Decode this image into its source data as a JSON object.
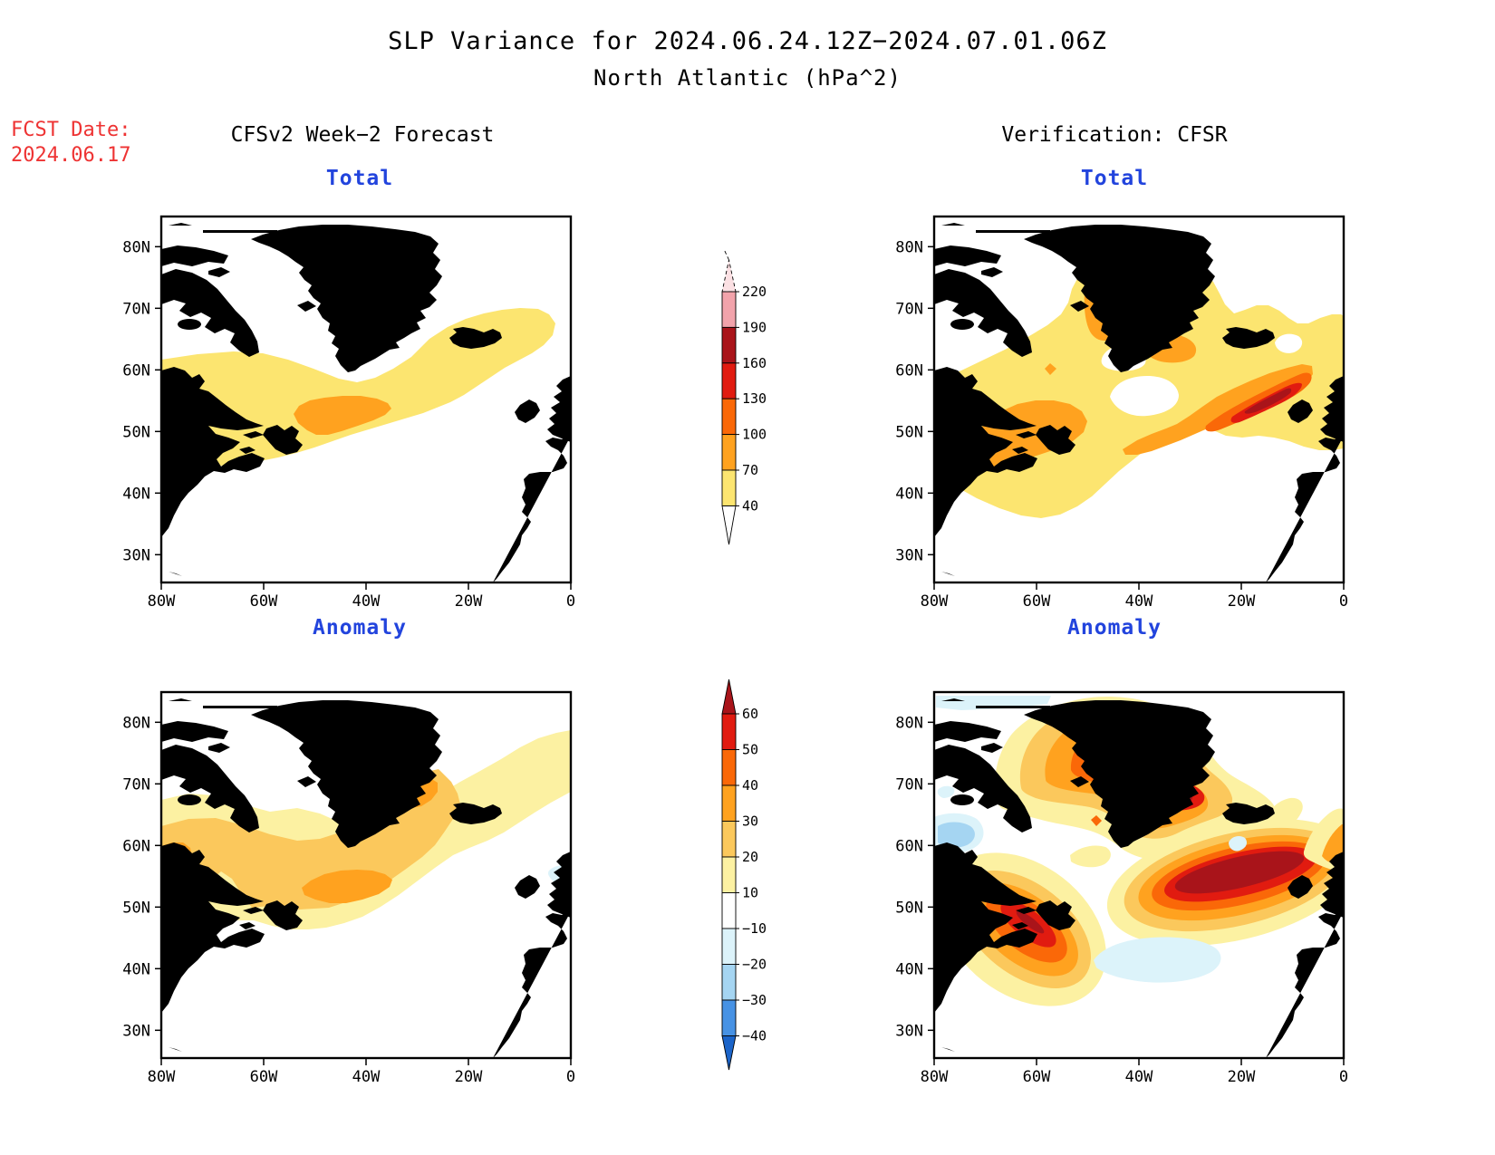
{
  "palette": {
    "t40": "#FCE570",
    "t70": "#FFA21F",
    "t100": "#FA6808",
    "t130": "#E11B10",
    "t160": "#A9141A",
    "t190": "#F2A3AB",
    "t220": "#FBE0E3",
    "a10": "#FCF1A2",
    "a20": "#FBC85C",
    "a30": "#FFA21F",
    "a40": "#FA6808",
    "a50": "#E11B10",
    "a60": "#A9141A",
    "m10": "#DCF3FA",
    "m20": "#A5D5F2",
    "m30": "#4792E4",
    "m40": "#1B64C9",
    "white": "#FFFFFF",
    "coast": "#000000",
    "fcst_red": "#EE3333",
    "panel_blue": "#2244DD"
  },
  "header": {
    "title_line1": "SLP Variance for 2024.06.24.12Z−2024.07.01.06Z",
    "title_line2": "North Atlantic (hPa^2)",
    "fcst_label": "FCST Date:",
    "fcst_date": "2024.06.17",
    "left_column": "CFSv2 Week−2 Forecast",
    "right_column": "Verification: CFSR"
  },
  "panels": [
    {
      "id": "forecast-total",
      "label": "Total"
    },
    {
      "id": "verification-total",
      "label": "Total"
    },
    {
      "id": "forecast-anomaly",
      "label": "Anomaly"
    },
    {
      "id": "verification-anomaly",
      "label": "Anomaly"
    }
  ],
  "axes": {
    "lat_ticks": [
      {
        "label": "80N",
        "value": 80
      },
      {
        "label": "70N",
        "value": 70
      },
      {
        "label": "60N",
        "value": 60
      },
      {
        "label": "50N",
        "value": 50
      },
      {
        "label": "40N",
        "value": 40
      },
      {
        "label": "30N",
        "value": 30
      }
    ],
    "lon_ticks": [
      {
        "label": "80W",
        "value": -80
      },
      {
        "label": "60W",
        "value": -60
      },
      {
        "label": "40W",
        "value": -40
      },
      {
        "label": "20W",
        "value": -20
      },
      {
        "label": "0",
        "value": 0
      }
    ]
  },
  "colorbars": {
    "total": {
      "tick_labels": [
        "220",
        "190",
        "160",
        "130",
        "100",
        "70",
        "40"
      ],
      "segment_colors": [
        "#F2A3AB",
        "#A9141A",
        "#E11B10",
        "#FA6808",
        "#FFA21F",
        "#FCE570"
      ],
      "above_color": "#FBE0E3",
      "below_color": "#FFFFFF"
    },
    "anomaly": {
      "tick_labels": [
        "60",
        "50",
        "40",
        "30",
        "20",
        "10",
        "−10",
        "−20",
        "−30",
        "−40"
      ],
      "segment_colors": [
        "#E11B10",
        "#FA6808",
        "#FFA21F",
        "#FBC85C",
        "#FCF1A2",
        "#FFFFFF",
        "#DCF3FA",
        "#A5D5F2",
        "#4792E4"
      ],
      "above_color": "#A9141A",
      "below_color": "#1B64C9"
    }
  },
  "chart_data": {
    "type": "heatmap",
    "subtype": "filled-contour-maps",
    "title": "SLP Variance for 2024.06.24.12Z−2024.07.01.06Z",
    "subtitle": "North Atlantic (hPa^2)",
    "units": "hPa^2",
    "forecast_initialization": "2024.06.17",
    "map_domain": {
      "lon_range": [
        "80W",
        "0"
      ],
      "lat_range": [
        "~25N",
        "~85N"
      ]
    },
    "contour_levels_total": [
      40,
      70,
      100,
      130,
      160,
      190,
      220
    ],
    "contour_levels_anomaly": [
      -40,
      -30,
      -20,
      -10,
      10,
      20,
      30,
      40,
      50,
      60
    ],
    "panels": [
      {
        "column": "CFSv2 Week−2 Forecast",
        "field": "Total",
        "features": [
          {
            "range": "40–70",
            "where": "zonal band across N Atlantic 45N–62N, 80W–5W, rising NE over Iceland to ~68N"
          },
          {
            "range": "70–100",
            "where": "maximum SE of Newfoundland ~50N–55N, 55W–35W"
          }
        ]
      },
      {
        "column": "Verification: CFSR",
        "field": "Total",
        "features": [
          {
            "range": "40–70",
            "where": "broad area over most of the basin and Greenland"
          },
          {
            "range": "70–100",
            "where": "interior/N Greenland ~70N–78N and E Greenland ~63N–67N"
          },
          {
            "range": "70–100",
            "where": "Newfoundland / Gulf of St Lawrence ~44N–52N"
          },
          {
            "range": "100–190",
            "where": "storm-track maximum S of Iceland ~53N–58N, 25W–5W, peak 160–190"
          }
        ]
      },
      {
        "column": "CFSv2 Week−2 Forecast",
        "field": "Anomaly",
        "features": [
          {
            "range": "10–20",
            "where": "broad band 44N–64N extending NE past Iceland"
          },
          {
            "range": "20–30",
            "where": "inner band Labrador Sea to SE of Greenland"
          },
          {
            "range": "30–40",
            "where": "cores near Labrador coast ~50N–57N, central Atlantic ~52N–56N 45W–35W, SE of Greenland ~60N–64N"
          },
          {
            "range": "-10 to -20",
            "where": "small negative patch near Scotland ~55N, 5W–0"
          }
        ]
      },
      {
        "column": "Verification: CFSR",
        "field": "Anomaly",
        "features": [
          {
            "range": ">60",
            "where": "central Greenland ~70N–75N and SE Greenland coast ~64N–66N"
          },
          {
            "range": ">60",
            "where": "elongated storm-track maximum 52N–59N, 30W–0"
          },
          {
            "range": "40–60",
            "where": "Nova Scotia / Newfoundland ~43N–50N"
          },
          {
            "range": "-10 to -30",
            "where": "Davis Strait ~58N–64N"
          },
          {
            "range": "-10",
            "where": "central Atlantic 38N–44N 40W–20W; near 83N; S of Greenland"
          }
        ]
      }
    ],
    "legend_position": "two vertical colorbars between left and right map columns",
    "grid": false
  }
}
